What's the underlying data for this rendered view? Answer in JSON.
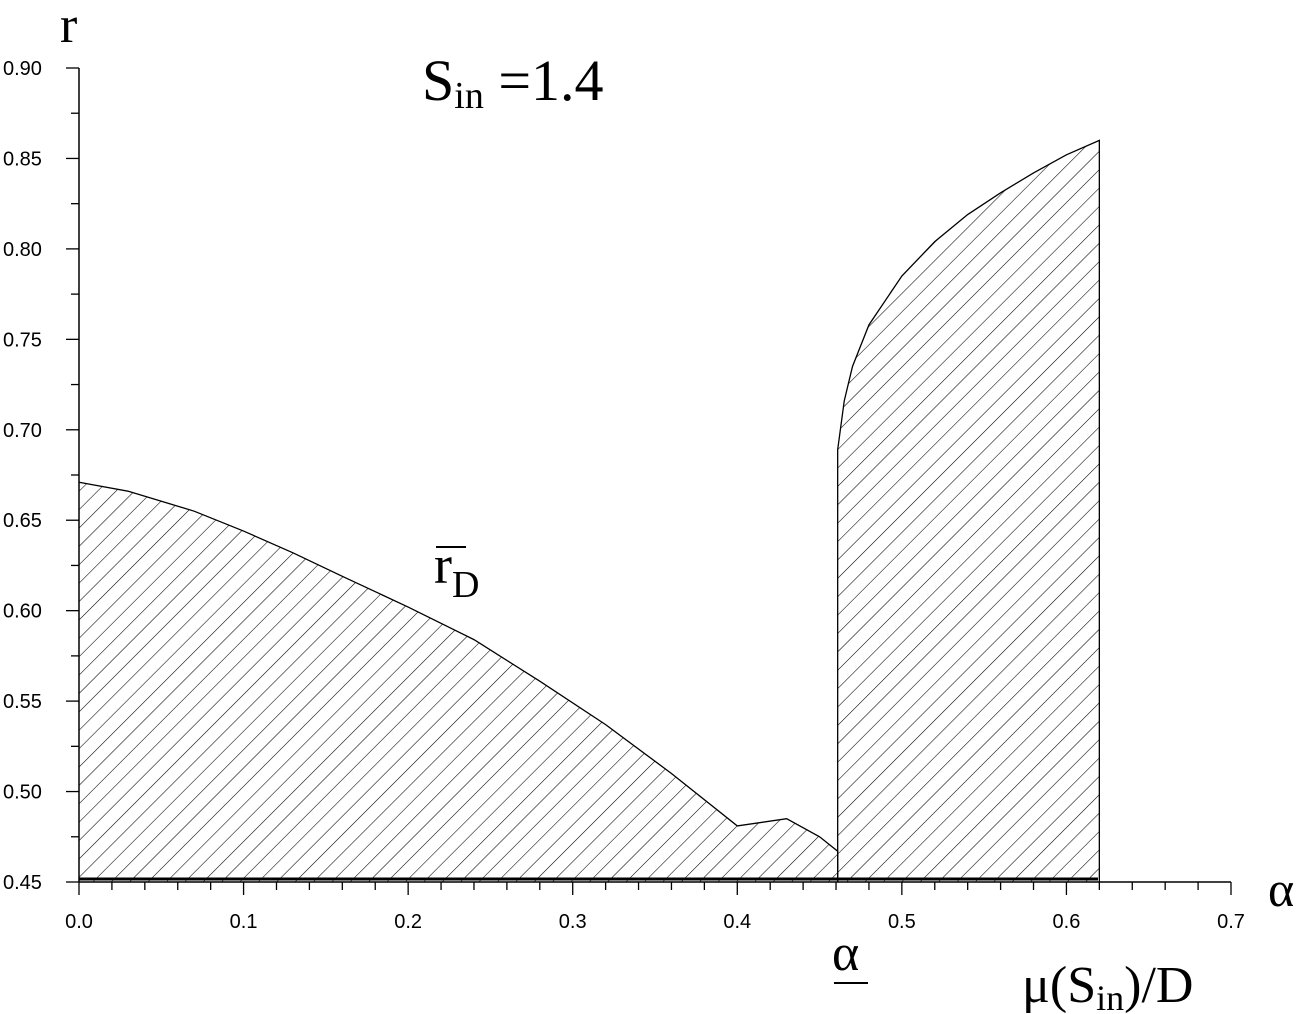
{
  "chart_data": {
    "type": "area",
    "title": {
      "main": "S",
      "sub": "in",
      "rest": " =1.4"
    },
    "ylabel": "r",
    "xlabel": "α",
    "xlabel2": {
      "pre": "μ(S",
      "sub": "in",
      "post": ")/D"
    },
    "xlim": [
      0.0,
      0.7
    ],
    "ylim": [
      0.45,
      0.9
    ],
    "xticks": [
      0.0,
      0.1,
      0.2,
      0.3,
      0.4,
      0.5,
      0.6,
      0.7
    ],
    "yticks": [
      0.45,
      0.5,
      0.55,
      0.6,
      0.65,
      0.7,
      0.75,
      0.8,
      0.85,
      0.9
    ],
    "xtick_labels": [
      "0.0",
      "0.1",
      "0.2",
      "0.3",
      "0.4",
      "0.5",
      "0.6",
      "0.7"
    ],
    "ytick_labels": [
      "0.45",
      "0.50",
      "0.55",
      "0.60",
      "0.65",
      "0.70",
      "0.75",
      "0.80",
      "0.85",
      "0.90"
    ],
    "annotations": {
      "curve_label": {
        "main": "r",
        "sub": "D"
      },
      "alpha_mark": "α"
    },
    "series": [
      {
        "fill": "hatched",
        "x": [
          0.0,
          0.03,
          0.07,
          0.1,
          0.13,
          0.16,
          0.2,
          0.24,
          0.28,
          0.32,
          0.36,
          0.4,
          0.43,
          0.45,
          0.461,
          0.461
        ],
        "y": [
          0.671,
          0.666,
          0.655,
          0.644,
          0.632,
          0.619,
          0.602,
          0.584,
          0.561,
          0.537,
          0.51,
          0.481,
          0.485,
          0.475,
          0.467,
          0.45
        ]
      },
      {
        "fill": "hatched",
        "x": [
          0.461,
          0.461,
          0.465,
          0.47,
          0.48,
          0.5,
          0.52,
          0.54,
          0.56,
          0.58,
          0.6,
          0.62,
          0.62
        ],
        "y": [
          0.45,
          0.689,
          0.716,
          0.735,
          0.758,
          0.785,
          0.804,
          0.819,
          0.831,
          0.842,
          0.852,
          0.86,
          0.45
        ]
      }
    ]
  }
}
